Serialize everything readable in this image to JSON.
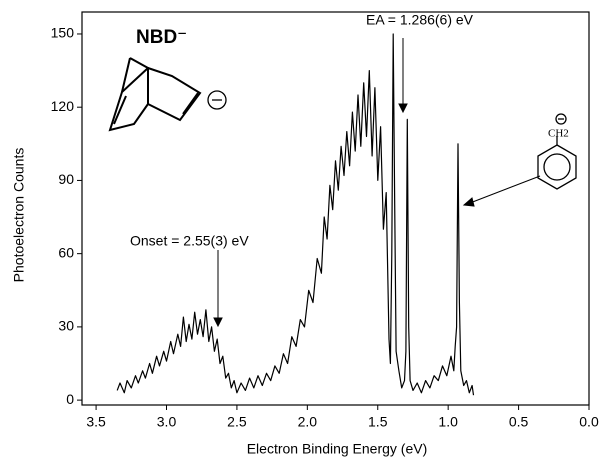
{
  "chart_data": {
    "type": "line",
    "x_label": "Electron Binding Energy (eV)",
    "y_label": "Photoelectron Counts",
    "xlim": [
      3.6,
      0.0
    ],
    "ylim": [
      -2,
      159
    ],
    "xticks": [
      3.5,
      {
        "value": 3,
        "label": "3.0"
      },
      2.5,
      {
        "value": 2,
        "label": "2.0"
      },
      1.5,
      {
        "value": 1,
        "label": "1.0"
      },
      0.5,
      {
        "value": 0,
        "label": "0.0"
      }
    ],
    "yticks": [
      0,
      30,
      60,
      90,
      120,
      150
    ],
    "color": "#000000",
    "annotations": [
      "NBD⁻",
      "EA = 1.286(6) eV",
      "Onset = 2.55(3) eV",
      "CH2"
    ],
    "x": [
      3.35,
      3.33,
      3.3,
      3.28,
      3.25,
      3.22,
      3.2,
      3.17,
      3.15,
      3.12,
      3.1,
      3.07,
      3.05,
      3.02,
      3.0,
      2.97,
      2.95,
      2.92,
      2.9,
      2.88,
      2.86,
      2.84,
      2.82,
      2.8,
      2.78,
      2.76,
      2.74,
      2.72,
      2.7,
      2.68,
      2.66,
      2.64,
      2.62,
      2.6,
      2.58,
      2.56,
      2.54,
      2.52,
      2.5,
      2.47,
      2.44,
      2.41,
      2.38,
      2.35,
      2.32,
      2.29,
      2.26,
      2.23,
      2.2,
      2.17,
      2.14,
      2.11,
      2.08,
      2.05,
      2.02,
      1.99,
      1.96,
      1.93,
      1.9,
      1.88,
      1.86,
      1.84,
      1.82,
      1.8,
      1.78,
      1.76,
      1.74,
      1.72,
      1.7,
      1.68,
      1.66,
      1.64,
      1.62,
      1.6,
      1.58,
      1.56,
      1.54,
      1.52,
      1.5,
      1.48,
      1.46,
      1.44,
      1.42,
      1.41,
      1.4,
      1.39,
      1.38,
      1.37,
      1.35,
      1.33,
      1.31,
      1.3,
      1.29,
      1.28,
      1.27,
      1.25,
      1.22,
      1.19,
      1.16,
      1.13,
      1.1,
      1.07,
      1.04,
      1.01,
      0.98,
      0.96,
      0.95,
      0.94,
      0.93,
      0.92,
      0.91,
      0.89,
      0.87,
      0.85,
      0.83,
      0.82
    ],
    "values": [
      4,
      7,
      3,
      8,
      5,
      10,
      7,
      12,
      9,
      15,
      11,
      18,
      14,
      20,
      16,
      24,
      19,
      27,
      22,
      34,
      24,
      31,
      25,
      36,
      27,
      33,
      26,
      37,
      24,
      30,
      20,
      25,
      15,
      18,
      9,
      11,
      5,
      8,
      3,
      7,
      4,
      9,
      5,
      10,
      6,
      11,
      8,
      14,
      11,
      19,
      15,
      26,
      22,
      33,
      30,
      45,
      40,
      58,
      52,
      75,
      66,
      88,
      78,
      98,
      86,
      104,
      92,
      110,
      96,
      118,
      102,
      125,
      104,
      130,
      108,
      135,
      100,
      128,
      90,
      112,
      70,
      85,
      25,
      15,
      60,
      150,
      80,
      20,
      12,
      5,
      8,
      20,
      115,
      30,
      8,
      4,
      7,
      3,
      8,
      5,
      10,
      8,
      14,
      10,
      18,
      12,
      22,
      30,
      105,
      40,
      12,
      6,
      8,
      3,
      6,
      2
    ]
  }
}
